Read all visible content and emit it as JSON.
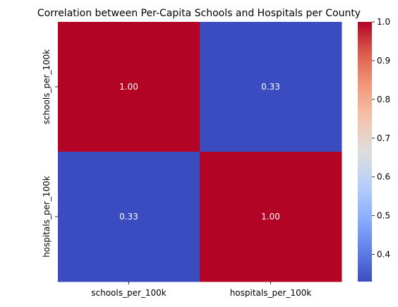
{
  "chart_data": {
    "type": "heatmap",
    "title": "Correlation between Per-Capita Schools and Hospitals per County",
    "xlabel": "",
    "ylabel": "",
    "x_categories": [
      "schools_per_100k",
      "hospitals_per_100k"
    ],
    "y_categories": [
      "schools_per_100k",
      "hospitals_per_100k"
    ],
    "values": [
      [
        1.0,
        0.33
      ],
      [
        0.33,
        1.0
      ]
    ],
    "annotations": [
      [
        "1.00",
        "0.33"
      ],
      [
        "0.33",
        "1.00"
      ]
    ],
    "colormap": "coolwarm",
    "colorbar": {
      "vmin": 0.33,
      "vmax": 1.0,
      "ticks": [
        "0.4",
        "0.5",
        "0.6",
        "0.7",
        "0.8",
        "0.9",
        "1.0"
      ],
      "tick_values": [
        0.4,
        0.5,
        0.6,
        0.7,
        0.8,
        0.9,
        1.0
      ]
    },
    "colors": {
      "high": "#b40426",
      "low": "#3b4cc0"
    }
  }
}
